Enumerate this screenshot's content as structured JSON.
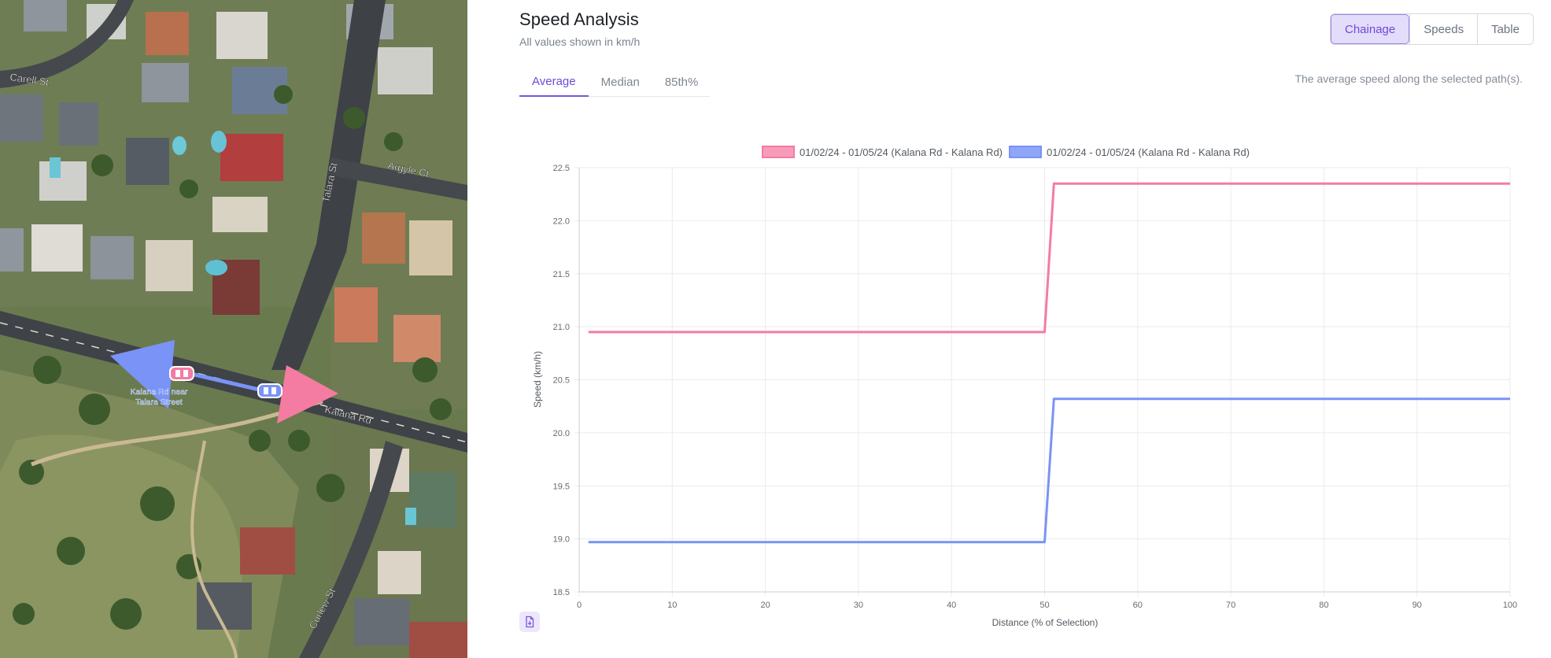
{
  "map": {
    "street_labels": [
      "Carell St",
      "Talara St",
      "Argyle Ct",
      "Kalana Rd",
      "Curlew St"
    ],
    "marker_label_line1": "Kalana Rd near",
    "marker_label_line2": "Talara Street",
    "colors": {
      "pink_arrow": "#f47ba2",
      "blue_arrow": "#7a93f6"
    }
  },
  "analysis": {
    "title": "Speed Analysis",
    "subtitle": "All values shown in km/h",
    "view_buttons": [
      "Chainage",
      "Speeds",
      "Table"
    ],
    "active_view": "Chainage",
    "tabs": [
      "Average",
      "Median",
      "85th%"
    ],
    "active_tab": "Average",
    "tab_description": "The average speed along the selected path(s).",
    "export_icon": "file-export-icon"
  },
  "chart_data": {
    "type": "line",
    "xlabel": "Distance (% of Selection)",
    "ylabel": "Speed (km/h)",
    "xlim": [
      0,
      100
    ],
    "ylim": [
      18.5,
      22.5
    ],
    "x_ticks": [
      "0",
      "10",
      "20",
      "30",
      "40",
      "50",
      "60",
      "70",
      "80",
      "90",
      "100"
    ],
    "y_ticks": [
      "18.5",
      "19.0",
      "19.5",
      "20.0",
      "20.5",
      "21.0",
      "21.5",
      "22.0",
      "22.5"
    ],
    "grid": true,
    "legend_position": "top",
    "series": [
      {
        "name": "01/02/24 - 01/05/24 (Kalana Rd - Kalana Rd)",
        "color": "#f47ba2",
        "points": [
          [
            1,
            20.95
          ],
          [
            50,
            20.95
          ],
          [
            51,
            22.35
          ],
          [
            100,
            22.35
          ]
        ]
      },
      {
        "name": "01/02/24 - 01/05/24 (Kalana Rd - Kalana Rd)",
        "color": "#7a93f6",
        "points": [
          [
            1,
            18.97
          ],
          [
            50,
            18.97
          ],
          [
            51,
            20.32
          ],
          [
            100,
            20.32
          ]
        ]
      }
    ]
  }
}
